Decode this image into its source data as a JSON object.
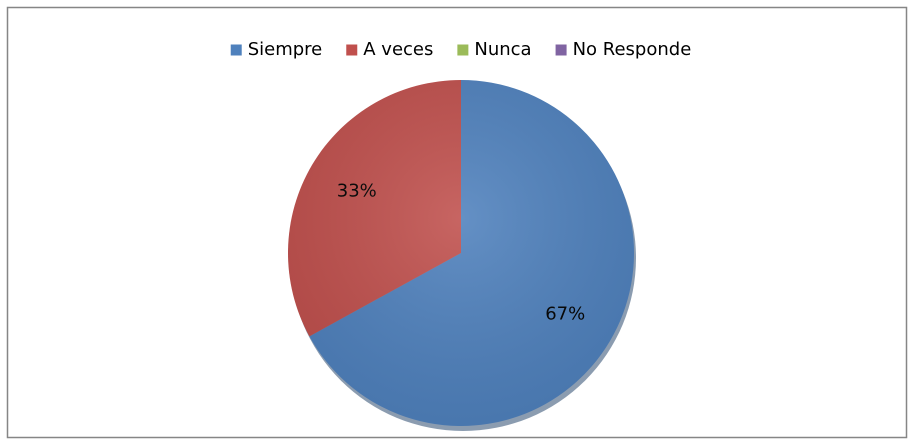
{
  "chart_data": {
    "type": "pie",
    "categories": [
      "Siempre",
      "A veces",
      "Nunca",
      "No Responde"
    ],
    "values": [
      67,
      33,
      0,
      0
    ],
    "value_labels": [
      "67%",
      "33%",
      null,
      null
    ],
    "colors": [
      "#4f81bd",
      "#c0504d",
      "#9bbb59",
      "#8064a2"
    ],
    "legend": "top"
  }
}
